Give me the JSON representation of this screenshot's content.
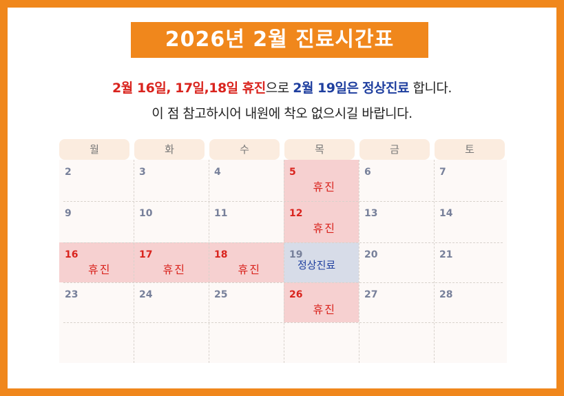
{
  "title": "2026년 2월 진료시간표",
  "notice": {
    "line1_red": "2월 16일, 17일,18일 휴진",
    "line1_mid": "으로 ",
    "line1_blue1": "2월 19일은",
    "line1_space": " ",
    "line1_blue2": "정상진료",
    "line1_end": " 합니다.",
    "line2": "이 점 참고하시어 내원에 착오 없으시길 바랍니다."
  },
  "weekdays": [
    "월",
    "화",
    "수",
    "목",
    "금",
    "토"
  ],
  "rows": [
    [
      {
        "day": "2"
      },
      {
        "day": "3"
      },
      {
        "day": "4"
      },
      {
        "day": "5",
        "status": "holiday",
        "label": "휴진"
      },
      {
        "day": "6"
      },
      {
        "day": "7"
      }
    ],
    [
      {
        "day": "9"
      },
      {
        "day": "10"
      },
      {
        "day": "11"
      },
      {
        "day": "12",
        "status": "holiday",
        "label": "휴진"
      },
      {
        "day": "13"
      },
      {
        "day": "14"
      }
    ],
    [
      {
        "day": "16",
        "status": "holiday",
        "label": "휴진"
      },
      {
        "day": "17",
        "status": "holiday",
        "label": "휴진"
      },
      {
        "day": "18",
        "status": "holiday",
        "label": "휴진"
      },
      {
        "day": "19",
        "status": "normal",
        "label": "정상진료"
      },
      {
        "day": "20"
      },
      {
        "day": "21"
      }
    ],
    [
      {
        "day": "23"
      },
      {
        "day": "24"
      },
      {
        "day": "25"
      },
      {
        "day": "26",
        "status": "holiday",
        "label": "휴진"
      },
      {
        "day": "27"
      },
      {
        "day": "28"
      }
    ],
    [
      {
        "day": ""
      },
      {
        "day": ""
      },
      {
        "day": ""
      },
      {
        "day": ""
      },
      {
        "day": ""
      },
      {
        "day": ""
      }
    ]
  ],
  "colors": {
    "frame": "#f0871c",
    "holiday_text": "#d9241e",
    "normal_text": "#1f3f9f",
    "holiday_fill": "#f6d0d0",
    "normal_fill": "#d7dce8"
  }
}
